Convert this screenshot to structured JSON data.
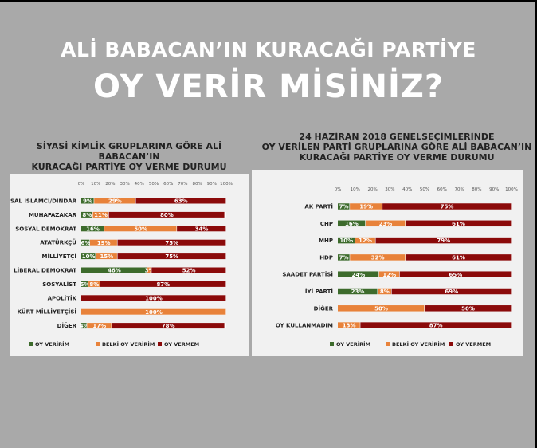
{
  "header": {
    "line1": "ALİ BABACAN’IN KURACAĞI PARTİYE",
    "line2": "OY VERİR MİSİNİZ?"
  },
  "colors": {
    "yes": "#3d6b2c",
    "maybe": "#e8823a",
    "no": "#8b0a0a"
  },
  "legend": {
    "yes": "OY VERİRİM",
    "maybe": "BELKİ OY VERİRİM",
    "no": "OY VERMEM"
  },
  "chart_data": [
    {
      "type": "bar",
      "stacked": true,
      "orientation": "horizontal",
      "title_lines": [
        "SİYASİ KİMLİK GRUPLARINA GÖRE ALİ BABACAN’IN",
        "KURACAĞI PARTİYE OY VERME DURUMU"
      ],
      "xlim": [
        0,
        100
      ],
      "ticks": [
        "0%",
        "10%",
        "20%",
        "30%",
        "40%",
        "50%",
        "60%",
        "70%",
        "80%",
        "90%",
        "100%"
      ],
      "categories": [
        "SİYASAL İSLAMCI/DİNDAR",
        "MUHAFAZAKAR",
        "SOSYAL DEMOKRAT",
        "ATATÜRKÇÜ",
        "MİLLİYETÇİ",
        "LİBERAL DEMOKRAT",
        "SOSYALİST",
        "APOLİTİK",
        "KÜRT MİLLİYETÇİSİ",
        "DİĞER"
      ],
      "series": [
        {
          "name": "OY VERİRİM",
          "values": [
            9,
            8,
            16,
            6,
            10,
            46,
            5,
            0,
            0,
            4
          ]
        },
        {
          "name": "BELKİ OY VERİRİM",
          "values": [
            29,
            11,
            50,
            19,
            15,
            3,
            8,
            0,
            100,
            17
          ]
        },
        {
          "name": "OY VERMEM",
          "values": [
            63,
            80,
            34,
            75,
            75,
            52,
            87,
            100,
            0,
            78
          ]
        }
      ],
      "value_labels": [
        [
          "9%",
          "29%",
          "63%"
        ],
        [
          "8%",
          "11%",
          "80%"
        ],
        [
          "16%",
          "50%",
          "34%"
        ],
        [
          "6%",
          "19%",
          "75%"
        ],
        [
          "10%",
          "15%",
          "75%"
        ],
        [
          "46%",
          "3%",
          "52%"
        ],
        [
          "5%",
          "8%",
          "87%"
        ],
        [
          "",
          "",
          "100%"
        ],
        [
          "",
          "100%",
          ""
        ],
        [
          "4%",
          "17%",
          "78%"
        ]
      ],
      "legend_position": "bottom"
    },
    {
      "type": "bar",
      "stacked": true,
      "orientation": "horizontal",
      "title_lines": [
        "24 HAZİRAN 2018 GENELSEÇİMLERİNDE",
        "OY VERİLEN PARTİ GRUPLARINA GÖRE ALİ BABACAN’IN",
        "KURACAĞI PARTİYE OY VERME DURUMU"
      ],
      "xlim": [
        0,
        100
      ],
      "ticks": [
        "0%",
        "10%",
        "20%",
        "30%",
        "40%",
        "50%",
        "60%",
        "70%",
        "80%",
        "90%",
        "100%"
      ],
      "categories": [
        "AK PARTİ",
        "CHP",
        "MHP",
        "HDP",
        "SAADET PARTİSİ",
        "İYİ PARTİ",
        "DİĞER",
        "OY KULLANMADIM"
      ],
      "series": [
        {
          "name": "OY VERİRİM",
          "values": [
            7,
            16,
            10,
            7,
            24,
            23,
            0,
            0
          ]
        },
        {
          "name": "BELKİ OY VERİRİM",
          "values": [
            19,
            23,
            12,
            32,
            12,
            8,
            50,
            13
          ]
        },
        {
          "name": "OY VERMEM",
          "values": [
            75,
            61,
            79,
            61,
            65,
            69,
            50,
            87
          ]
        }
      ],
      "value_labels": [
        [
          "7%",
          "19%",
          "75%"
        ],
        [
          "16%",
          "23%",
          "61%"
        ],
        [
          "10%",
          "12%",
          "79%"
        ],
        [
          "7%",
          "32%",
          "61%"
        ],
        [
          "24%",
          "12%",
          "65%"
        ],
        [
          "23%",
          "8%",
          "69%"
        ],
        [
          "",
          "50%",
          "50%"
        ],
        [
          "",
          "13%",
          "87%"
        ]
      ],
      "legend_position": "bottom"
    }
  ]
}
